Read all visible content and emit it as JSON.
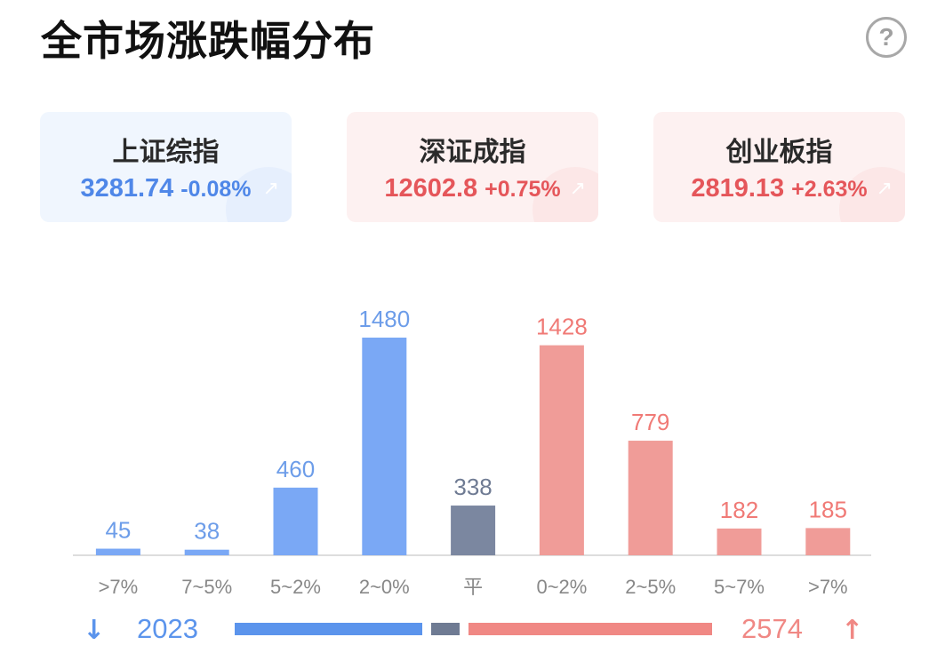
{
  "header": {
    "title": "全市场涨跌幅分布",
    "help_label": "?"
  },
  "indices": [
    {
      "name": "上证综指",
      "value": "3281.74",
      "change": "-0.08%",
      "direction": "down"
    },
    {
      "name": "深证成指",
      "value": "12602.8",
      "change": "+0.75%",
      "direction": "up"
    },
    {
      "name": "创业板指",
      "value": "2819.13",
      "change": "+2.63%",
      "direction": "up"
    }
  ],
  "chart_data": {
    "type": "bar",
    "title": "",
    "xlabel": "",
    "ylabel": "",
    "categories": [
      ">7%",
      "7~5%",
      "5~2%",
      "2~0%",
      "平",
      "0~2%",
      "2~5%",
      "5~7%",
      ">7%"
    ],
    "values": [
      45,
      38,
      460,
      1480,
      338,
      1428,
      779,
      182,
      185
    ],
    "groups": [
      "down",
      "down",
      "down",
      "down",
      "flat",
      "up",
      "up",
      "up",
      "up"
    ],
    "colors": {
      "down": "#7aa8f5",
      "flat": "#7b87a0",
      "up": "#f09c98"
    },
    "label_colors": {
      "down": "#6d9de9",
      "flat": "#6f7b93",
      "up": "#f07a76"
    },
    "tick_color": "#888888",
    "ylim": [
      0,
      1480
    ],
    "grid": false,
    "legend": "none"
  },
  "summary": {
    "down_total": "2023",
    "up_total": "2574",
    "down_arrow": "↓",
    "up_arrow": "↑",
    "down_color": "#5b94ec",
    "flat_color": "#6f7b93",
    "up_color": "#f08884"
  }
}
